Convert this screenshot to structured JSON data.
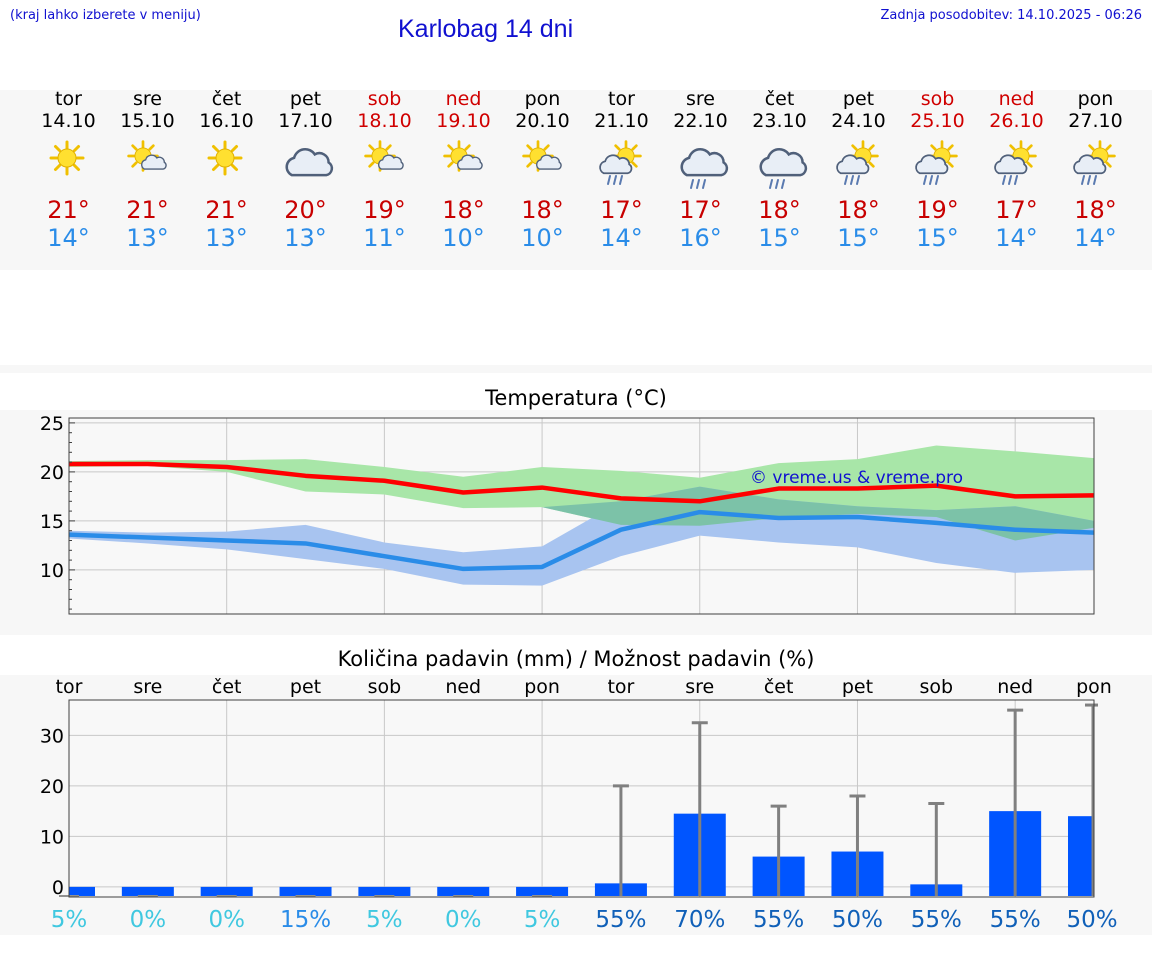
{
  "header": {
    "hint": "(kraj lahko izberete v meniju)",
    "title": "Karlobag 14 dni",
    "updated": "Zadnja posodobitev: 14.10.2025 - 06:26"
  },
  "colors": {
    "text_link": "#1010d0",
    "weekend": "#d00000",
    "tmax": "#c80000",
    "tmin": "#2a8ce8",
    "line_max": "#ff0000",
    "line_min": "#2a8ce8",
    "band_max": "#a8e6a8",
    "band_min": "#a8c4f0",
    "bar": "#0055ff",
    "errorbar": "#808080"
  },
  "days": [
    {
      "name": "tor",
      "date": "14.10",
      "weekend": false,
      "icon": "sun-icon",
      "tmax": "21°",
      "tmin": "14°"
    },
    {
      "name": "sre",
      "date": "15.10",
      "weekend": false,
      "icon": "sun-cloud-icon",
      "tmax": "21°",
      "tmin": "13°"
    },
    {
      "name": "čet",
      "date": "16.10",
      "weekend": false,
      "icon": "sun-icon",
      "tmax": "21°",
      "tmin": "13°"
    },
    {
      "name": "pet",
      "date": "17.10",
      "weekend": false,
      "icon": "cloud-icon",
      "tmax": "20°",
      "tmin": "13°"
    },
    {
      "name": "sob",
      "date": "18.10",
      "weekend": true,
      "icon": "sun-cloud-icon",
      "tmax": "19°",
      "tmin": "11°"
    },
    {
      "name": "ned",
      "date": "19.10",
      "weekend": true,
      "icon": "sun-cloud-icon",
      "tmax": "18°",
      "tmin": "10°"
    },
    {
      "name": "pon",
      "date": "20.10",
      "weekend": false,
      "icon": "sun-cloud-icon",
      "tmax": "18°",
      "tmin": "10°"
    },
    {
      "name": "tor",
      "date": "21.10",
      "weekend": false,
      "icon": "sun-cloud-rain-icon",
      "tmax": "17°",
      "tmin": "14°"
    },
    {
      "name": "sre",
      "date": "22.10",
      "weekend": false,
      "icon": "cloud-rain-icon",
      "tmax": "17°",
      "tmin": "16°"
    },
    {
      "name": "čet",
      "date": "23.10",
      "weekend": false,
      "icon": "cloud-rain-icon",
      "tmax": "18°",
      "tmin": "15°"
    },
    {
      "name": "pet",
      "date": "24.10",
      "weekend": false,
      "icon": "sun-cloud-rain-icon",
      "tmax": "18°",
      "tmin": "15°"
    },
    {
      "name": "sob",
      "date": "25.10",
      "weekend": true,
      "icon": "sun-cloud-rain-icon",
      "tmax": "19°",
      "tmin": "15°"
    },
    {
      "name": "ned",
      "date": "26.10",
      "weekend": true,
      "icon": "sun-cloud-rain-icon",
      "tmax": "17°",
      "tmin": "14°"
    },
    {
      "name": "pon",
      "date": "27.10",
      "weekend": false,
      "icon": "sun-cloud-rain-icon",
      "tmax": "18°",
      "tmin": "14°"
    }
  ],
  "chart_data": [
    {
      "type": "line",
      "title": "Temperatura (°C)",
      "xlabel": "",
      "ylabel": "°C",
      "ylim": [
        5.5,
        25.5
      ],
      "yticks": [
        10,
        15,
        20,
        25
      ],
      "x": [
        0,
        1,
        2,
        3,
        4,
        5,
        6,
        7,
        8,
        9,
        10,
        11,
        12,
        13
      ],
      "watermark": "© vreme.us & vreme.pro",
      "series": [
        {
          "name": "max",
          "values": [
            20.8,
            20.8,
            20.5,
            19.6,
            19.1,
            17.9,
            18.4,
            17.3,
            17.0,
            18.3,
            18.3,
            18.6,
            17.5,
            17.6
          ]
        },
        {
          "name": "min",
          "values": [
            13.6,
            13.3,
            13.0,
            12.7,
            11.4,
            10.1,
            10.3,
            14.1,
            15.9,
            15.3,
            15.4,
            14.8,
            14.1,
            13.8
          ]
        },
        {
          "name": "max_range_upper",
          "values": [
            21.1,
            21.2,
            21.2,
            21.3,
            20.5,
            19.5,
            20.5,
            20.1,
            19.4,
            20.9,
            21.3,
            22.7,
            22.1,
            21.4
          ]
        },
        {
          "name": "max_range_lower",
          "values": [
            20.5,
            20.6,
            20.0,
            18.0,
            17.7,
            16.3,
            16.4,
            14.6,
            14.5,
            15.3,
            15.7,
            15.4,
            13.0,
            14.3
          ]
        },
        {
          "name": "min_range_upper",
          "values": [
            14.0,
            13.8,
            13.9,
            14.6,
            12.8,
            11.8,
            12.4,
            17.0,
            18.5,
            17.2,
            16.5,
            16.1,
            16.5,
            15.0
          ]
        },
        {
          "name": "min_range_lower",
          "values": [
            13.2,
            12.7,
            12.1,
            11.1,
            10.1,
            8.5,
            8.4,
            11.4,
            13.5,
            12.8,
            12.3,
            10.7,
            9.7,
            10.0
          ]
        }
      ]
    },
    {
      "type": "bar",
      "title": "Količina padavin (mm) / Možnost padavin (%)",
      "xlabel": "",
      "ylabel": "mm",
      "ylim": [
        -2,
        37
      ],
      "yticks": [
        0,
        10,
        20,
        30
      ],
      "categories": [
        "tor",
        "sre",
        "čet",
        "pet",
        "sob",
        "ned",
        "pon",
        "tor",
        "sre",
        "čet",
        "pet",
        "sob",
        "ned",
        "pon"
      ],
      "values": [
        0,
        0,
        0,
        0,
        0,
        0,
        0,
        0.7,
        14.5,
        6.0,
        7.0,
        0.5,
        15.0,
        14.0
      ],
      "error_upper": [
        0,
        0,
        0,
        0,
        0,
        0,
        0,
        20.0,
        32.5,
        16.0,
        18.0,
        16.5,
        35.0,
        36.0
      ],
      "probability": [
        "5%",
        "0%",
        "0%",
        "15%",
        "5%",
        "0%",
        "5%",
        "55%",
        "70%",
        "55%",
        "50%",
        "55%",
        "55%",
        "50%"
      ],
      "probability_values": [
        5,
        0,
        0,
        15,
        5,
        0,
        5,
        55,
        70,
        55,
        50,
        55,
        55,
        50
      ]
    }
  ]
}
